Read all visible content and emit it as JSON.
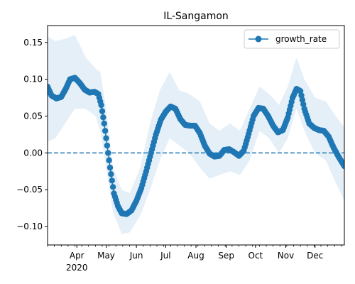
{
  "chart_data": {
    "type": "line",
    "title": "IL-Sangamon",
    "xlabel": "",
    "ylabel": "",
    "x_range": [
      "2020-03-02",
      "2020-12-31"
    ],
    "ylim": [
      -0.125,
      0.173
    ],
    "y_ticks": [
      -0.1,
      -0.05,
      0.0,
      0.05,
      0.1,
      0.15
    ],
    "y_tick_labels": [
      "−0.10",
      "−0.05",
      "0.00",
      "0.05",
      "0.10",
      "0.15"
    ],
    "x_ticks": [
      {
        "date": "2020-04-01",
        "label": "Apr",
        "sublabel": "2020"
      },
      {
        "date": "2020-05-01",
        "label": "May"
      },
      {
        "date": "2020-06-01",
        "label": "Jun"
      },
      {
        "date": "2020-07-01",
        "label": "Jul"
      },
      {
        "date": "2020-08-01",
        "label": "Aug"
      },
      {
        "date": "2020-09-01",
        "label": "Sep"
      },
      {
        "date": "2020-10-01",
        "label": "Oct"
      },
      {
        "date": "2020-11-01",
        "label": "Nov"
      },
      {
        "date": "2020-12-01",
        "label": "Dec"
      }
    ],
    "grid": false,
    "legend": {
      "placement": "top-right",
      "entries": [
        "growth_rate"
      ]
    },
    "reference_line": {
      "y": 0.0,
      "style": "dashed"
    },
    "colors": {
      "line": "#1f77b4",
      "band": "#dce9f5",
      "reference": "#1f77b4"
    },
    "series": [
      {
        "name": "growth_rate",
        "style": "line-with-markers",
        "points": [
          [
            "2020-03-02",
            0.09
          ],
          [
            "2020-03-06",
            0.078
          ],
          [
            "2020-03-11",
            0.074
          ],
          [
            "2020-03-16",
            0.076
          ],
          [
            "2020-03-21",
            0.088
          ],
          [
            "2020-03-25",
            0.1
          ],
          [
            "2020-03-30",
            0.102
          ],
          [
            "2020-04-04",
            0.095
          ],
          [
            "2020-04-09",
            0.086
          ],
          [
            "2020-04-14",
            0.082
          ],
          [
            "2020-04-19",
            0.083
          ],
          [
            "2020-04-23",
            0.08
          ],
          [
            "2020-04-26",
            0.065
          ],
          [
            "2020-04-29",
            0.04
          ],
          [
            "2020-05-02",
            0.01
          ],
          [
            "2020-05-05",
            -0.02
          ],
          [
            "2020-05-09",
            -0.055
          ],
          [
            "2020-05-13",
            -0.072
          ],
          [
            "2020-05-17",
            -0.082
          ],
          [
            "2020-05-22",
            -0.083
          ],
          [
            "2020-05-27",
            -0.078
          ],
          [
            "2020-06-01",
            -0.065
          ],
          [
            "2020-06-06",
            -0.048
          ],
          [
            "2020-06-11",
            -0.025
          ],
          [
            "2020-06-16",
            0.0
          ],
          [
            "2020-06-21",
            0.025
          ],
          [
            "2020-06-26",
            0.045
          ],
          [
            "2020-07-01",
            0.056
          ],
          [
            "2020-07-06",
            0.063
          ],
          [
            "2020-07-11",
            0.06
          ],
          [
            "2020-07-16",
            0.046
          ],
          [
            "2020-07-21",
            0.038
          ],
          [
            "2020-07-26",
            0.037
          ],
          [
            "2020-07-31",
            0.037
          ],
          [
            "2020-08-05",
            0.027
          ],
          [
            "2020-08-10",
            0.01
          ],
          [
            "2020-08-15",
            -0.001
          ],
          [
            "2020-08-20",
            -0.005
          ],
          [
            "2020-08-25",
            -0.004
          ],
          [
            "2020-08-30",
            0.004
          ],
          [
            "2020-09-04",
            0.005
          ],
          [
            "2020-09-09",
            0.001
          ],
          [
            "2020-09-14",
            -0.004
          ],
          [
            "2020-09-19",
            0.003
          ],
          [
            "2020-09-24",
            0.026
          ],
          [
            "2020-09-29",
            0.05
          ],
          [
            "2020-10-04",
            0.061
          ],
          [
            "2020-10-09",
            0.06
          ],
          [
            "2020-10-14",
            0.05
          ],
          [
            "2020-10-19",
            0.037
          ],
          [
            "2020-10-24",
            0.028
          ],
          [
            "2020-10-29",
            0.031
          ],
          [
            "2020-11-03",
            0.048
          ],
          [
            "2020-11-08",
            0.075
          ],
          [
            "2020-11-12",
            0.087
          ],
          [
            "2020-11-16",
            0.084
          ],
          [
            "2020-11-20",
            0.06
          ],
          [
            "2020-11-25",
            0.04
          ],
          [
            "2020-11-30",
            0.034
          ],
          [
            "2020-12-05",
            0.031
          ],
          [
            "2020-12-10",
            0.03
          ],
          [
            "2020-12-15",
            0.022
          ],
          [
            "2020-12-20",
            0.007
          ],
          [
            "2020-12-25",
            -0.005
          ],
          [
            "2020-12-31",
            -0.018
          ]
        ]
      }
    ],
    "uncertainty_band": {
      "points": [
        [
          "2020-03-02",
          0.015,
          0.158
        ],
        [
          "2020-03-10",
          0.02,
          0.152
        ],
        [
          "2020-03-20",
          0.04,
          0.155
        ],
        [
          "2020-03-30",
          0.06,
          0.16
        ],
        [
          "2020-04-10",
          0.06,
          0.13
        ],
        [
          "2020-04-20",
          0.05,
          0.115
        ],
        [
          "2020-04-25",
          0.03,
          0.11
        ],
        [
          "2020-05-01",
          -0.02,
          0.06
        ],
        [
          "2020-05-08",
          -0.08,
          -0.02
        ],
        [
          "2020-05-17",
          -0.11,
          -0.05
        ],
        [
          "2020-05-25",
          -0.108,
          -0.055
        ],
        [
          "2020-06-05",
          -0.085,
          -0.02
        ],
        [
          "2020-06-15",
          -0.05,
          0.04
        ],
        [
          "2020-06-25",
          -0.01,
          0.085
        ],
        [
          "2020-07-05",
          0.02,
          0.11
        ],
        [
          "2020-07-15",
          0.01,
          0.085
        ],
        [
          "2020-07-25",
          0.0,
          0.08
        ],
        [
          "2020-08-05",
          -0.02,
          0.07
        ],
        [
          "2020-08-15",
          -0.035,
          0.04
        ],
        [
          "2020-08-25",
          -0.03,
          0.03
        ],
        [
          "2020-09-05",
          -0.025,
          0.04
        ],
        [
          "2020-09-15",
          -0.03,
          0.03
        ],
        [
          "2020-09-25",
          -0.01,
          0.06
        ],
        [
          "2020-10-05",
          0.03,
          0.09
        ],
        [
          "2020-10-15",
          0.02,
          0.08
        ],
        [
          "2020-10-25",
          0.0,
          0.065
        ],
        [
          "2020-11-03",
          0.02,
          0.09
        ],
        [
          "2020-11-12",
          0.06,
          0.13
        ],
        [
          "2020-11-20",
          0.03,
          0.1
        ],
        [
          "2020-12-01",
          0.0,
          0.075
        ],
        [
          "2020-12-12",
          -0.01,
          0.07
        ],
        [
          "2020-12-22",
          -0.04,
          0.05
        ],
        [
          "2020-12-31",
          -0.065,
          0.035
        ]
      ]
    }
  }
}
